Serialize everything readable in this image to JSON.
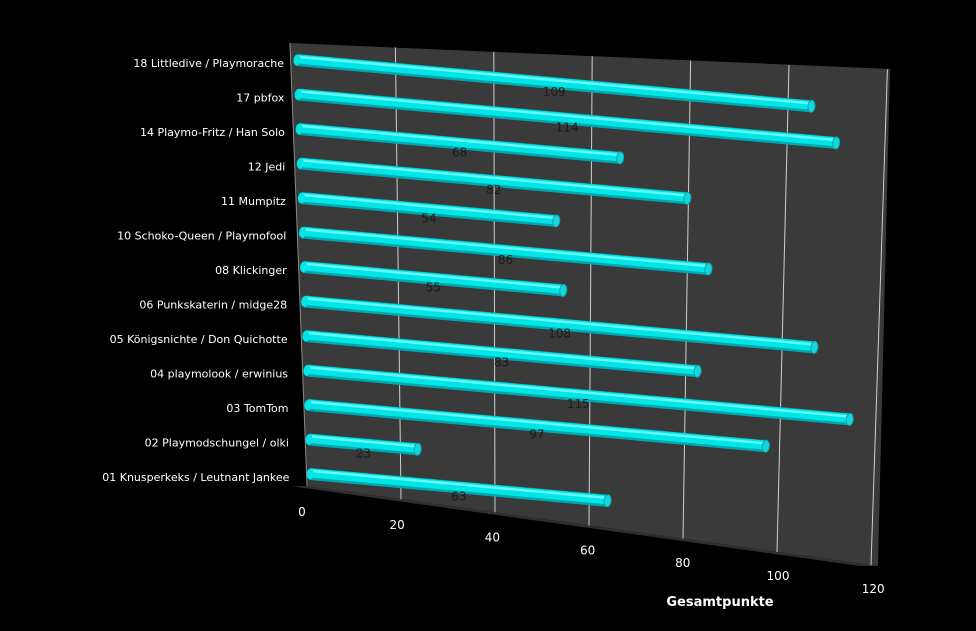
{
  "chart_data": {
    "type": "bar",
    "orientation": "horizontal",
    "style": "3d-cylinder",
    "categories": [
      "18 Littledive / Playmorache",
      "17 pbfox",
      "14 Playmo-Fritz / Han Solo",
      "12 Jedi",
      "11 Mumpitz",
      "10 Schoko-Queen / Playmofool",
      "08 Klickinger",
      "06 Punkskaterin / midge28",
      "05 Königsnichte / Don Quichotte",
      "04 playmolook / erwinius",
      "03 TomTom",
      "02 Playmodschungel / olki",
      "01 Knusperkeks / Leutnant Jankee"
    ],
    "values": [
      109,
      114,
      68,
      82,
      54,
      86,
      55,
      108,
      83,
      115,
      97,
      23,
      63
    ],
    "xlabel": "Gesamtpunkte",
    "xlim": [
      0,
      120
    ],
    "xticks": [
      0,
      20,
      40,
      60,
      80,
      100,
      120
    ],
    "grid": true,
    "legend": "none",
    "colors": {
      "background": "#000000",
      "wall": "#3a3a3a",
      "floor": "#2e2e2e",
      "bar": "#00e5e5",
      "bar_highlight": "#7ffcfc",
      "bar_shadow": "#00a9b0",
      "grid": "#cfcfcf",
      "text": "#ffffff",
      "data_label": "#1a1a1a"
    }
  }
}
